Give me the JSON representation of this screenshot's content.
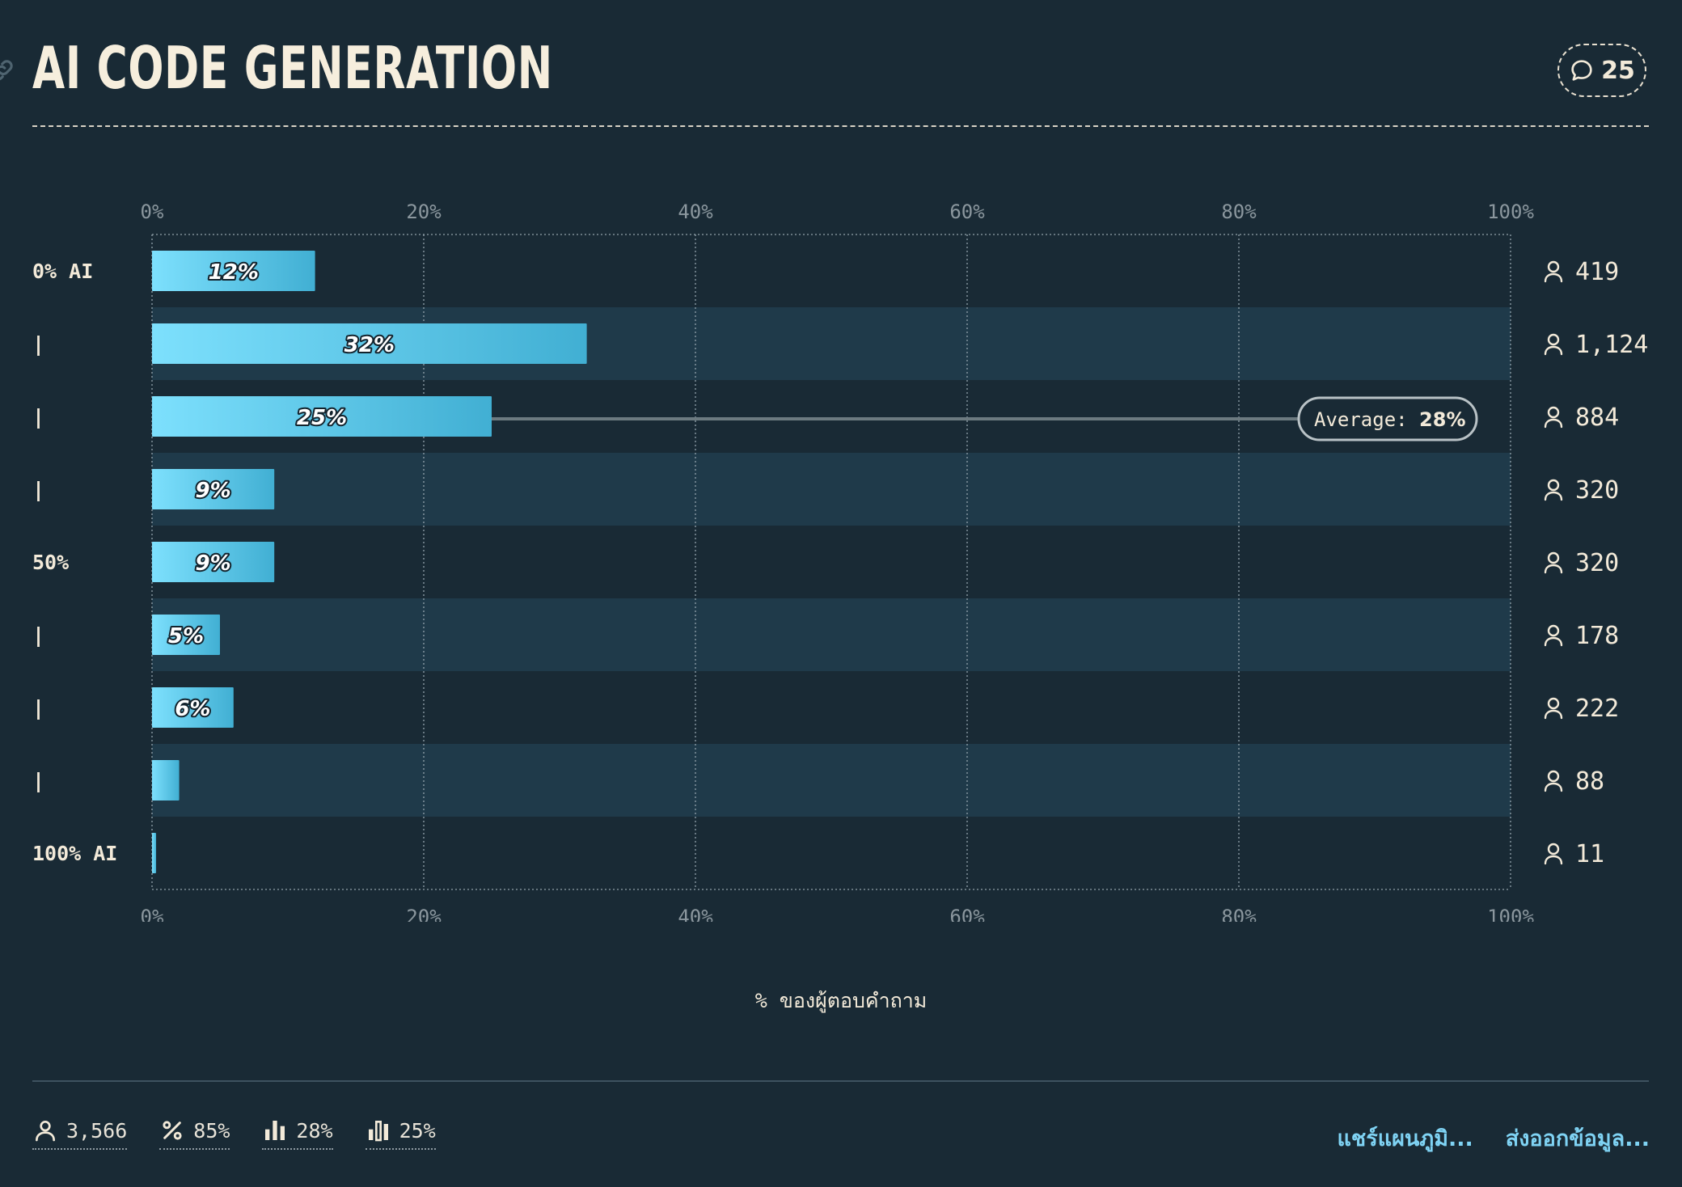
{
  "page": {
    "title": "AI CODE GENERATION",
    "comment_count": "25"
  },
  "colors": {
    "background": "#192a35",
    "band": "#1f3a4a",
    "bar_start": "#7de0fd",
    "bar_end": "#41afd3",
    "text": "#f3ead9",
    "link": "#7fd3f4"
  },
  "chart_data": {
    "type": "bar",
    "orientation": "horizontal",
    "categories": [
      "0% AI",
      "|",
      "|",
      "|",
      "50%",
      "|",
      "|",
      "|",
      "100% AI"
    ],
    "values": [
      12,
      32,
      25,
      9,
      9,
      5,
      6,
      2,
      0.3
    ],
    "value_labels": [
      "12%",
      "32%",
      "25%",
      "9%",
      "9%",
      "5%",
      "6%",
      "",
      ""
    ],
    "respondents": [
      "419",
      "1,124",
      "884",
      "320",
      "320",
      "178",
      "222",
      "88",
      "11"
    ],
    "xlim": [
      0,
      100
    ],
    "x_ticks": [
      "0%",
      "20%",
      "40%",
      "60%",
      "80%",
      "100%"
    ],
    "xlabel": "% ของผู้ตอบคำถาม",
    "average": {
      "label": "Average:",
      "value": "28%",
      "row_index": 2
    },
    "grid": true
  },
  "footer": {
    "stats": [
      {
        "icon": "person-icon",
        "value": "3,566"
      },
      {
        "icon": "percent-icon",
        "value": "85%"
      },
      {
        "icon": "bar-chart-icon",
        "value": "28%"
      },
      {
        "icon": "bar-chart-outline-icon",
        "value": "25%"
      }
    ],
    "actions": [
      "แชร์แผนภูมิ...",
      "ส่งออกข้อมูล..."
    ]
  }
}
